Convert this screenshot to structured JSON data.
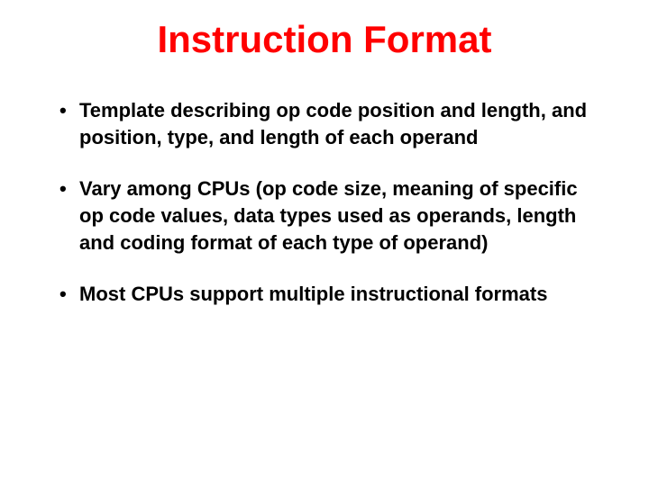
{
  "slide": {
    "title": "Instruction Format",
    "title_color": "#ff0000",
    "title_fontsize": 42,
    "body_fontsize": 22,
    "body_color": "#000000",
    "line_height": 1.35,
    "background_color": "#ffffff",
    "bullets": [
      "Template describing op code position and length, and position, type, and length of each operand",
      "Vary among CPUs (op code size, meaning of specific op code values, data types used as operands, length and coding format of each type of operand)",
      "Most CPUs support multiple instructional formats"
    ]
  }
}
